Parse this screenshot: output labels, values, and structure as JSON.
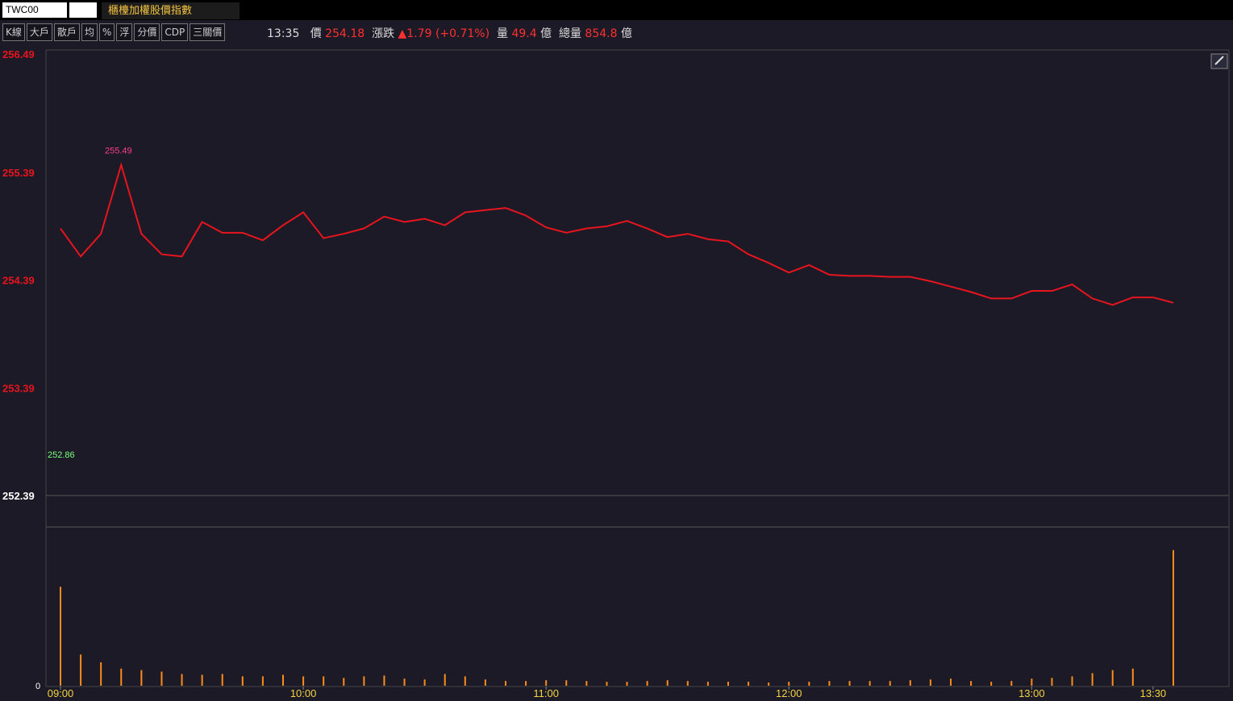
{
  "header": {
    "symbol": "TWC00",
    "name": "櫃檯加權股價指數",
    "buttons": [
      "K線",
      "大戶",
      "散戶",
      "均",
      "%",
      "浮",
      "分價",
      "CDP",
      "三關價"
    ],
    "time": "13:35",
    "price_label": "價",
    "price": "254.18",
    "change_label": "漲跌",
    "change": "▲1.79",
    "change_pct": "(+0.71%)",
    "volume_label": "量",
    "volume": "49.4",
    "volume_unit": "億",
    "total_label": "總量",
    "total": "854.8",
    "total_unit": "億"
  },
  "chart_data": {
    "type": "line",
    "color": "#e8141e",
    "x": [
      "09:00",
      "09:05",
      "09:10",
      "09:15",
      "09:20",
      "09:25",
      "09:30",
      "09:35",
      "09:40",
      "09:45",
      "09:50",
      "09:55",
      "10:00",
      "10:05",
      "10:10",
      "10:15",
      "10:20",
      "10:25",
      "10:30",
      "10:35",
      "10:40",
      "10:45",
      "10:50",
      "10:55",
      "11:00",
      "11:05",
      "11:10",
      "11:15",
      "11:20",
      "11:25",
      "11:30",
      "11:35",
      "11:40",
      "11:45",
      "11:50",
      "11:55",
      "12:00",
      "12:05",
      "12:10",
      "12:15",
      "12:20",
      "12:25",
      "12:30",
      "12:35",
      "12:40",
      "12:45",
      "12:50",
      "12:55",
      "13:00",
      "13:05",
      "13:10",
      "13:15",
      "13:20",
      "13:25",
      "13:30",
      "13:35"
    ],
    "values": [
      254.87,
      254.61,
      254.82,
      255.46,
      254.82,
      254.63,
      254.61,
      254.93,
      254.83,
      254.83,
      254.76,
      254.9,
      255.02,
      254.78,
      254.82,
      254.87,
      254.98,
      254.93,
      254.96,
      254.9,
      255.02,
      255.04,
      255.06,
      254.99,
      254.88,
      254.83,
      254.87,
      254.89,
      254.94,
      254.87,
      254.79,
      254.82,
      254.77,
      254.75,
      254.63,
      254.55,
      254.46,
      254.53,
      254.44,
      254.43,
      254.43,
      254.42,
      254.42,
      254.38,
      254.33,
      254.28,
      254.22,
      254.22,
      254.29,
      254.29,
      254.35,
      254.22,
      254.16,
      254.23,
      254.23,
      254.18
    ],
    "ylim": [
      252.39,
      256.49
    ],
    "yticks": [
      252.39,
      253.39,
      254.39,
      255.39,
      256.49
    ],
    "xticks": [
      "09:00",
      "10:00",
      "11:00",
      "12:00",
      "13:00",
      "13:30"
    ],
    "annotations": [
      {
        "value": 255.49,
        "color": "#ff3c8c"
      },
      {
        "value": 252.86,
        "color": "#7dff7d"
      }
    ],
    "volume": {
      "type": "bar",
      "color": "#ff8c1a",
      "ylim": [
        0,
        180
      ],
      "yticks": [
        0
      ],
      "values": [
        127,
        40,
        30,
        22,
        20,
        18,
        15,
        14,
        15,
        12,
        12,
        14,
        12,
        12,
        10,
        12,
        13,
        9,
        8,
        15,
        12,
        8,
        6,
        6,
        7,
        7,
        6,
        5,
        5,
        6,
        7,
        6,
        5,
        5,
        5,
        4,
        5,
        5,
        6,
        6,
        6,
        6,
        7,
        8,
        9,
        6,
        5,
        6,
        9,
        10,
        12,
        16,
        20,
        22,
        0,
        174
      ]
    }
  }
}
